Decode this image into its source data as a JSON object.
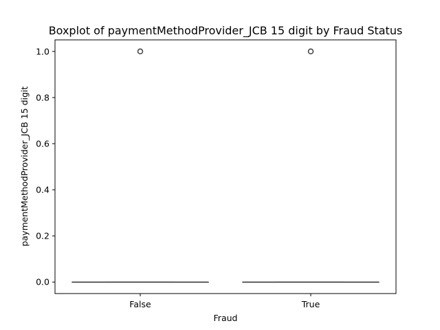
{
  "chart_data": {
    "type": "boxplot",
    "title": "Boxplot of paymentMethodProvider_JCB 15 digit by Fraud Status",
    "xlabel": "Fraud",
    "ylabel": "paymentMethodProvider_JCB 15 digit",
    "categories": [
      "False",
      "True"
    ],
    "ylim": [
      -0.05,
      1.05
    ],
    "yticks": [
      0.0,
      0.2,
      0.4,
      0.6,
      0.8,
      1.0
    ],
    "ytick_labels": [
      "0.0",
      "0.2",
      "0.4",
      "0.6",
      "0.8",
      "1.0"
    ],
    "grid": false,
    "boxes": [
      {
        "category": "False",
        "min": 0.0,
        "q1": 0.0,
        "median": 0.0,
        "q3": 0.0,
        "max": 0.0,
        "outliers": [
          1.0
        ]
      },
      {
        "category": "True",
        "min": 0.0,
        "q1": 0.0,
        "median": 0.0,
        "q3": 0.0,
        "max": 0.0,
        "outliers": [
          1.0
        ]
      }
    ],
    "colors": {
      "box_line": "#3f3f3f",
      "axes": "#000000"
    }
  }
}
